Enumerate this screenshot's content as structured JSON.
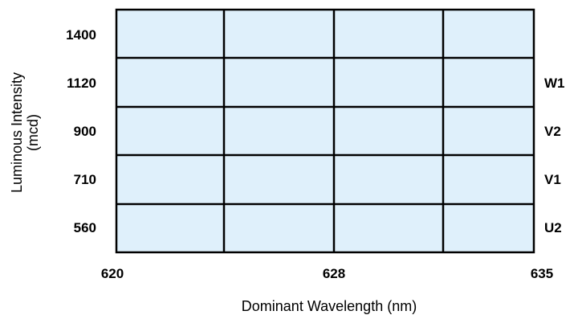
{
  "chart_data": {
    "type": "heatmap",
    "title": "",
    "xlabel": "Dominant Wavelength (nm)",
    "ylabel_lines": [
      "Luminous Intensity",
      "(mcd)"
    ],
    "x_ticks": [
      "620",
      "628",
      "635"
    ],
    "y_ticks": [
      "1400",
      "1120",
      "900",
      "710",
      "560"
    ],
    "bin_labels": [
      "W1",
      "V2",
      "V1",
      "U2"
    ],
    "grid": {
      "rows": 5,
      "cols": 4
    },
    "fill_color": "#dff0fb",
    "line_color": "#000000"
  }
}
